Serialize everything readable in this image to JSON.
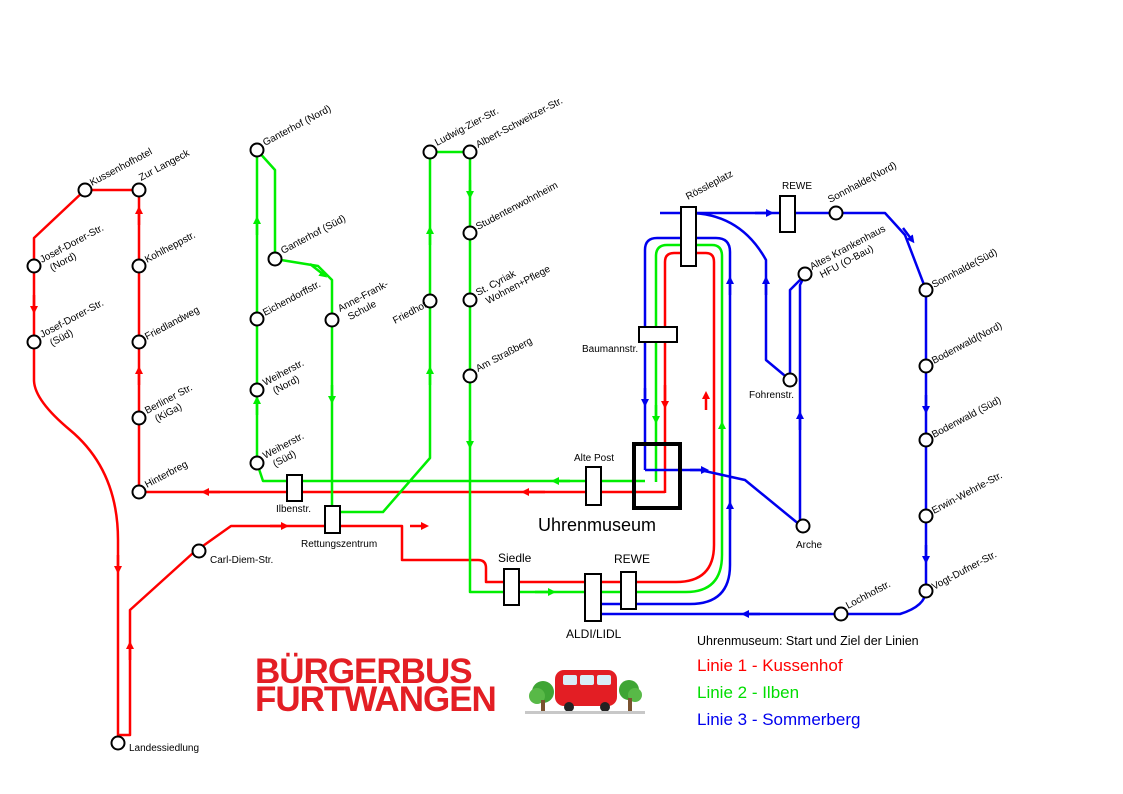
{
  "colors": {
    "line1": "#ff0000",
    "line2": "#00ee00",
    "line3": "#0000ee",
    "stop_fill": "#ffffff",
    "stop_stroke": "#000000",
    "logo_red": "#e31e24"
  },
  "hub": {
    "name": "Uhrenmuseum"
  },
  "stops": {
    "kussenhofhotel": "Kussenhofhotel",
    "zur_langeck": "Zur Langeck",
    "josef_dorer_nord": [
      "Josef-Dorer-Str.",
      "(Nord)"
    ],
    "josef_dorer_sued": [
      "Josef-Dorer-Str.",
      "(Süd)"
    ],
    "kohlheppstr": "Kohlheppstr.",
    "friedlandweg": "Friedlandweg",
    "berliner_str": [
      "Berliner Str.",
      "(KiGa)"
    ],
    "hinterbreg": "Hinterbreg",
    "carl_diem": "Carl-Diem-Str.",
    "landessiedlung": "Landessiedlung",
    "ganterhof_nord": "Ganterhof (Nord)",
    "ganterhof_sued": "Ganterhof (Süd)",
    "eichendorffstr": "Eichendorffstr.",
    "anne_frank": [
      "Anne-Frank-",
      "Schule"
    ],
    "weiherstr_nord": [
      "Weiherstr.",
      "(Nord)"
    ],
    "weiherstr_sued": [
      "Weiherstr.",
      "(Süd)"
    ],
    "ilbenstr": "Ilbenstr.",
    "rettungszentrum": "Rettungszentrum",
    "friedhof": "Friedhof",
    "ludwig_zier": "Ludwig-Zier-Str.",
    "albert_schweitzer": "Albert-Schweitzer-Str.",
    "studentenwohnheim": "Studentenwohnheim",
    "st_cyriak": [
      "St. Cyriak",
      "Wohnen+Pflege"
    ],
    "am_strassberg": "Am Straßberg",
    "alte_post": "Alte Post",
    "siedle": "Siedle",
    "rewe_south": "REWE",
    "aldi_lidl": "ALDI/LIDL",
    "baumannstr": "Baumannstr.",
    "roessleplatz": "Rössleplatz",
    "rewe_north": "REWE",
    "sonnhalde_nord": "Sonnhalde(Nord)",
    "altes_krankenhaus": [
      "Altes Krankenhaus",
      "HFU (O-Bau)"
    ],
    "fohrenstr": "Fohrenstr.",
    "arche": "Arche",
    "sonnhalde_sued": "Sonnhalde(Süd)",
    "bodenwald_nord": "Bodenwald(Nord)",
    "bodenwald_sued": "Bodenwald (Süd)",
    "erwin_wehrle": "Erwin-Wehrle-Str.",
    "vogt_dufner": "Vogt-Dufner-Str.",
    "lochhofstr": "Lochhofstr."
  },
  "legend": {
    "caption": "Uhrenmuseum: Start und Ziel der Linien",
    "line1": "Linie 1 - Kussenhof",
    "line2": "Linie 2 - Ilben",
    "line3": "Linie 3 - Sommerberg"
  },
  "logo": {
    "line1": "BÜRGERBUS",
    "line2": "FURTWANGEN"
  }
}
